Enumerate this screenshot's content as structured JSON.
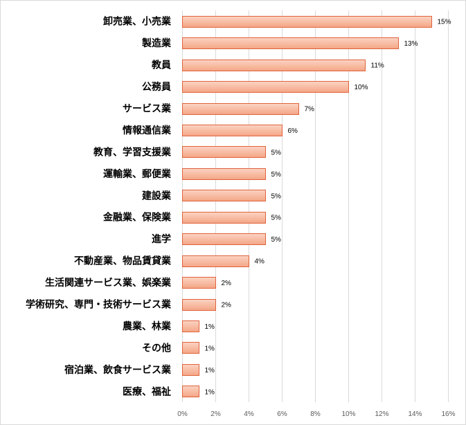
{
  "chart_data": {
    "type": "bar",
    "orientation": "horizontal",
    "title": "",
    "xlabel": "",
    "ylabel": "",
    "categories": [
      "卸売業、小売業",
      "製造業",
      "教員",
      "公務員",
      "サービス業",
      "情報通信業",
      "教育、学習支援業",
      "運輸業、郵便業",
      "建設業",
      "金融業、保険業",
      "進学",
      "不動産業、物品賃貸業",
      "生活関連サービス業、娯楽業",
      "学術研究、専門・技術サービス業",
      "農業、林業",
      "その他",
      "宿泊業、飲食サービス業",
      "医療、福祉"
    ],
    "values": [
      15,
      13,
      11,
      10,
      7,
      6,
      5,
      5,
      5,
      5,
      5,
      4,
      2,
      2,
      1,
      1,
      1,
      1
    ],
    "data_labels": [
      "15%",
      "13%",
      "11%",
      "10%",
      "7%",
      "6%",
      "5%",
      "5%",
      "5%",
      "5%",
      "5%",
      "4%",
      "2%",
      "2%",
      "1%",
      "1%",
      "1%",
      "1%"
    ],
    "xlim": [
      0,
      16
    ],
    "xticks": [
      0,
      2,
      4,
      6,
      8,
      10,
      12,
      14,
      16
    ],
    "xtick_labels": [
      "0%",
      "2%",
      "4%",
      "6%",
      "8%",
      "10%",
      "12%",
      "14%",
      "16%"
    ],
    "grid": "vertical",
    "legend": "none",
    "colors": {
      "bar_top": "#fbd4c4",
      "bar_bottom": "#f4a585",
      "bar_border": "#e0623a",
      "grid": "#d9d9d9",
      "frame": "#d9d9d9"
    }
  }
}
